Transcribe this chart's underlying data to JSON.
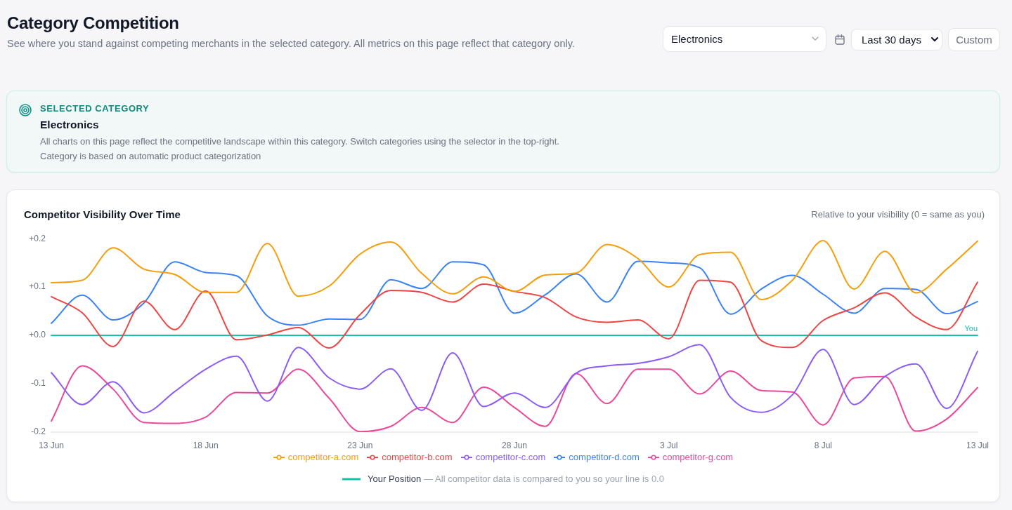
{
  "chart_data": {
    "type": "line",
    "title": "Competitor Visibility Over Time",
    "subtitle": "Relative to your visibility (0 = same as you)",
    "categories": [
      "13 Jun",
      null,
      null,
      null,
      null,
      "18 Jun",
      null,
      null,
      null,
      null,
      "23 Jun",
      null,
      null,
      null,
      null,
      "28 Jun",
      null,
      null,
      null,
      null,
      "3 Jul",
      null,
      null,
      null,
      null,
      "8 Jul",
      null,
      null,
      null,
      null,
      "13 Jul"
    ],
    "series": [
      {
        "name": "competitor-a.com",
        "color": "#f59e0b",
        "values": [
          0.109,
          0.114,
          0.181,
          0.137,
          0.126,
          0.089,
          0.089,
          0.19,
          0.081,
          0.102,
          0.168,
          0.193,
          0.128,
          0.086,
          0.121,
          0.091,
          0.125,
          0.129,
          0.188,
          0.159,
          0.1,
          0.167,
          0.172,
          0.074,
          0.114,
          0.196,
          0.096,
          0.174,
          0.088,
          0.137,
          0.195
        ]
      },
      {
        "name": "competitor-b.com",
        "color": "#ef4444",
        "values": [
          0.08,
          0.047,
          -0.023,
          0.071,
          0.012,
          0.092,
          -0.009,
          0.001,
          0.016,
          -0.026,
          0.043,
          0.093,
          0.089,
          0.069,
          0.106,
          0.091,
          0.078,
          0.038,
          0.027,
          0.032,
          -0.007,
          0.114,
          0.11,
          -0.011,
          -0.025,
          0.031,
          0.057,
          0.088,
          0.038,
          0.012,
          0.11
        ]
      },
      {
        "name": "competitor-c.com",
        "color": "#8b5cf6",
        "values": [
          -0.077,
          -0.143,
          -0.096,
          -0.16,
          -0.116,
          -0.07,
          -0.043,
          -0.136,
          -0.025,
          -0.088,
          -0.111,
          -0.069,
          -0.155,
          -0.036,
          -0.147,
          -0.119,
          -0.149,
          -0.078,
          -0.063,
          -0.058,
          -0.044,
          -0.019,
          -0.128,
          -0.159,
          -0.123,
          -0.029,
          -0.143,
          -0.085,
          -0.059,
          -0.151,
          -0.033
        ]
      },
      {
        "name": "competitor-d.com",
        "color": "#3b82f6",
        "values": [
          0.025,
          0.083,
          0.032,
          0.067,
          0.152,
          0.13,
          0.123,
          0.04,
          0.021,
          0.034,
          0.033,
          0.115,
          0.097,
          0.152,
          0.146,
          0.046,
          0.084,
          0.127,
          0.069,
          0.153,
          0.15,
          0.14,
          0.044,
          0.096,
          0.124,
          0.085,
          0.046,
          0.097,
          0.095,
          0.045,
          0.07
        ]
      },
      {
        "name": "competitor-g.com",
        "color": "#ec4899",
        "values": [
          -0.177,
          -0.063,
          -0.111,
          -0.18,
          -0.182,
          -0.169,
          -0.118,
          -0.119,
          -0.07,
          -0.13,
          -0.199,
          -0.188,
          -0.149,
          -0.18,
          -0.107,
          -0.149,
          -0.188,
          -0.079,
          -0.141,
          -0.07,
          -0.07,
          -0.121,
          -0.074,
          -0.114,
          -0.117,
          -0.185,
          -0.088,
          -0.085,
          -0.198,
          -0.173,
          -0.108
        ]
      },
      {
        "name": "Your Position",
        "color": "#14c4a6",
        "values": [
          0,
          0,
          0,
          0,
          0,
          0,
          0,
          0,
          0,
          0,
          0,
          0,
          0,
          0,
          0,
          0,
          0,
          0,
          0,
          0,
          0,
          0,
          0,
          0,
          0,
          0,
          0,
          0,
          0,
          0,
          0
        ]
      }
    ],
    "ylim": [
      -0.2,
      0.2
    ],
    "yticks": [
      {
        "value": 0.2,
        "label": "+0.2"
      },
      {
        "value": 0.1,
        "label": "+0.1"
      },
      {
        "value": 0,
        "label": "+0.0"
      },
      -0.1,
      -0.2
    ],
    "legend": "bottom",
    "annotations": [
      "Category Competition",
      "See where you stand against competing merchants in the selected category. All metrics on this page reflect that category only.",
      "Electronics",
      "Last 30 days",
      "Custom",
      "SELECTED CATEGORY",
      "Electronics",
      "All charts on this page reflect the competitive landscape within this category. Switch categories using the selector in the top-right.",
      "Category is based on automatic product categorization",
      "— All competitor data is compared to you so your line is 0.0",
      {
        "text": "You",
        "x": "13 Jul",
        "y": 0
      }
    ]
  }
}
